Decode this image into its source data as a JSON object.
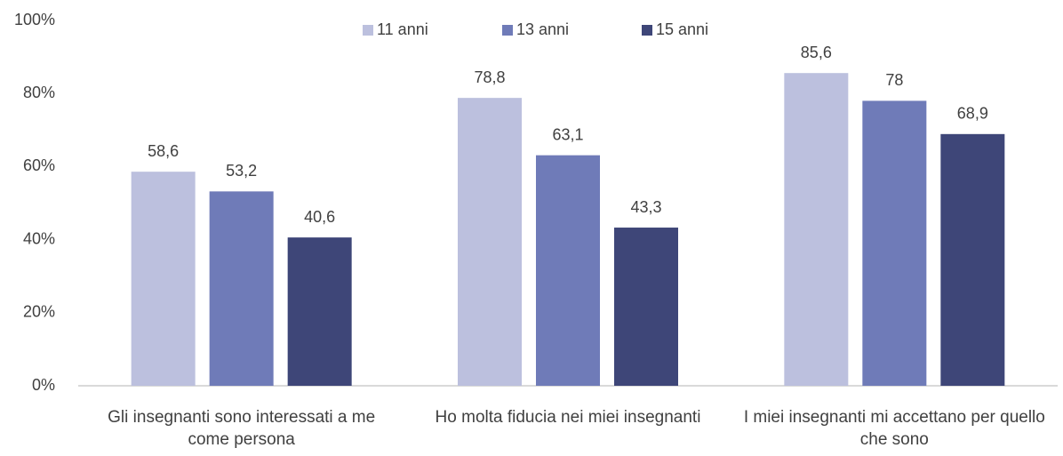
{
  "chart_data": {
    "type": "bar",
    "categories": [
      "Gli insegnanti sono interessati a me come persona",
      "Ho molta fiducia nei miei insegnanti",
      "I miei insegnanti mi accettano per quello che sono"
    ],
    "series": [
      {
        "name": "11 anni",
        "color": "#bcc0de",
        "values": [
          58.6,
          78.8,
          85.6
        ],
        "value_labels": [
          "58,6",
          "78,8",
          "85,6"
        ]
      },
      {
        "name": "13 anni",
        "color": "#6f7bb8",
        "values": [
          53.2,
          63.1,
          78
        ],
        "value_labels": [
          "53,2",
          "63,1",
          "78"
        ]
      },
      {
        "name": "15 anni",
        "color": "#3e4678",
        "values": [
          40.6,
          43.3,
          68.9
        ],
        "value_labels": [
          "40,6",
          "43,3",
          "68,9"
        ]
      }
    ],
    "ylim": [
      0,
      100
    ],
    "yticks": [
      {
        "value": 0,
        "label": "0%"
      },
      {
        "value": 20,
        "label": "20%"
      },
      {
        "value": 40,
        "label": "40%"
      },
      {
        "value": 60,
        "label": "60%"
      },
      {
        "value": 80,
        "label": "80%"
      },
      {
        "value": 100,
        "label": "100%"
      }
    ],
    "legend": "top",
    "grid": false
  }
}
